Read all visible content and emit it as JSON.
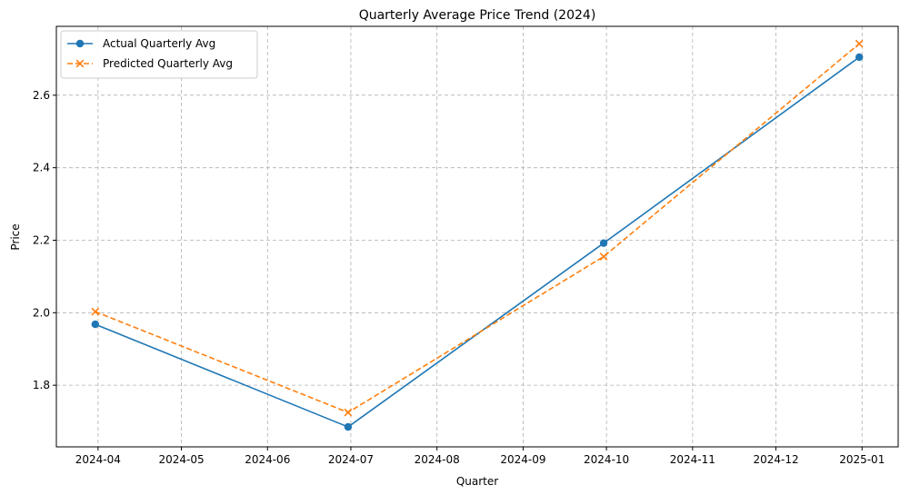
{
  "chart_data": {
    "type": "line",
    "title": "Quarterly Average Price Trend (2024)",
    "xlabel": "Quarter",
    "ylabel": "Price",
    "x": [
      "2024-03-31",
      "2024-06-30",
      "2024-09-30",
      "2024-12-31"
    ],
    "x_ticks": [
      "2024-04",
      "2024-05",
      "2024-06",
      "2024-07",
      "2024-08",
      "2024-09",
      "2024-10",
      "2024-11",
      "2024-12",
      "2025-01"
    ],
    "xlim": [
      "2024-03-17",
      "2025-01-14"
    ],
    "y_ticks": [
      "1.8",
      "2.0",
      "2.2",
      "2.4",
      "2.6"
    ],
    "ylim": [
      1.63,
      2.79
    ],
    "grid": true,
    "legend_position": "top-left",
    "series": [
      {
        "name": "Actual Quarterly Avg",
        "values": [
          1.968,
          1.685,
          2.192,
          2.705
        ],
        "color": "#1f77b4",
        "marker": "circle",
        "line_style": "solid"
      },
      {
        "name": "Predicted Quarterly Avg",
        "values": [
          2.003,
          1.725,
          2.155,
          2.742
        ],
        "color": "#ff7f0e",
        "marker": "x",
        "line_style": "dashed"
      }
    ]
  }
}
